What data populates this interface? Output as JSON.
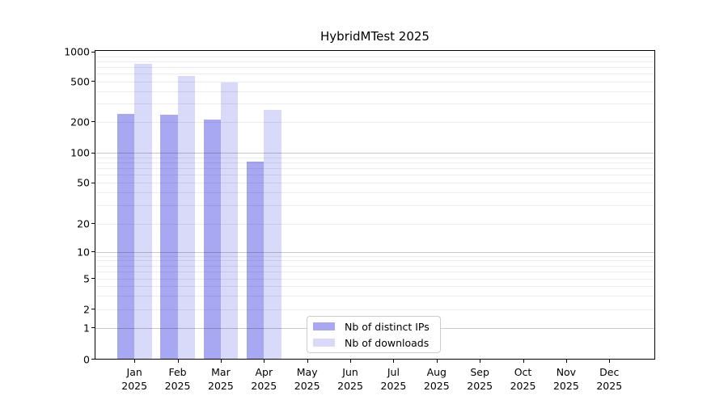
{
  "chart_data": {
    "type": "bar",
    "title": "HybridMTest 2025",
    "categories": [
      "Jan",
      "Feb",
      "Mar",
      "Apr",
      "May",
      "Jun",
      "Jul",
      "Aug",
      "Sep",
      "Oct",
      "Nov",
      "Dec"
    ],
    "category_year": "2025",
    "series": [
      {
        "name": "Nb of distinct IPs",
        "color": "#a8a8f2",
        "values": [
          240,
          235,
          210,
          82,
          null,
          null,
          null,
          null,
          null,
          null,
          null,
          null
        ]
      },
      {
        "name": "Nb of downloads",
        "color": "#d9d9f9",
        "values": [
          755,
          570,
          485,
          260,
          null,
          null,
          null,
          null,
          null,
          null,
          null,
          null
        ]
      }
    ],
    "yticks": [
      0,
      1,
      2,
      5,
      10,
      20,
      50,
      100,
      200,
      500,
      1000
    ],
    "xlabel": "",
    "ylabel": "",
    "scale": "symlog",
    "grid": "horizontal-minor-log",
    "legend_position": "inside-bottom-center",
    "axis_color": "#000000",
    "background_color": "#ffffff"
  }
}
